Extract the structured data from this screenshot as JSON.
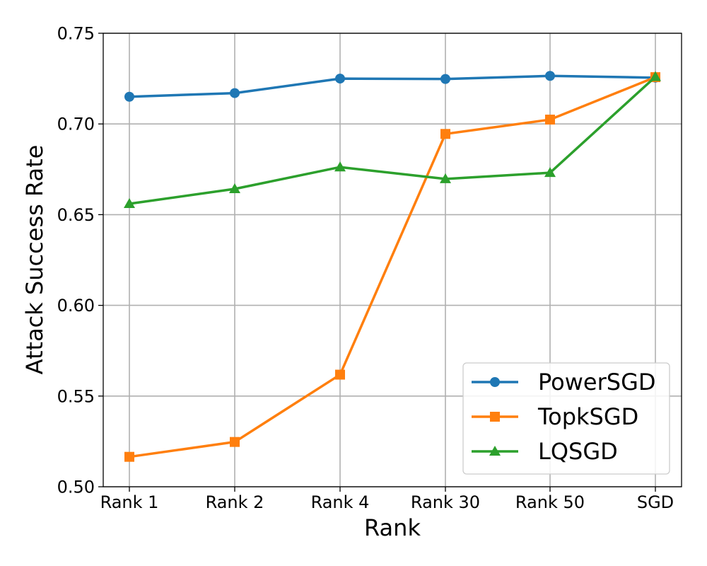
{
  "chart_data": {
    "type": "line",
    "title": "",
    "xlabel": "Rank",
    "ylabel": "Attack Success Rate",
    "categories": [
      "Rank 1",
      "Rank 2",
      "Rank 4",
      "Rank 30",
      "Rank 50",
      "SGD"
    ],
    "ylim": [
      0.5,
      0.75
    ],
    "yticks": [
      "0.50",
      "0.55",
      "0.60",
      "0.65",
      "0.70",
      "0.75"
    ],
    "grid": true,
    "legend_position": "bottom-right",
    "series": [
      {
        "name": "PowerSGD",
        "color": "#1f77b4",
        "marker": "circle",
        "values": [
          0.715,
          0.717,
          0.725,
          0.7248,
          0.7265,
          0.7255
        ]
      },
      {
        "name": "TopkSGD",
        "color": "#ff7f0e",
        "marker": "square",
        "values": [
          0.5165,
          0.5247,
          0.5618,
          0.6945,
          0.7024,
          0.7258
        ]
      },
      {
        "name": "LQSGD",
        "color": "#2ca02c",
        "marker": "triangle",
        "values": [
          0.656,
          0.6642,
          0.6762,
          0.6697,
          0.6731,
          0.726
        ]
      }
    ]
  }
}
